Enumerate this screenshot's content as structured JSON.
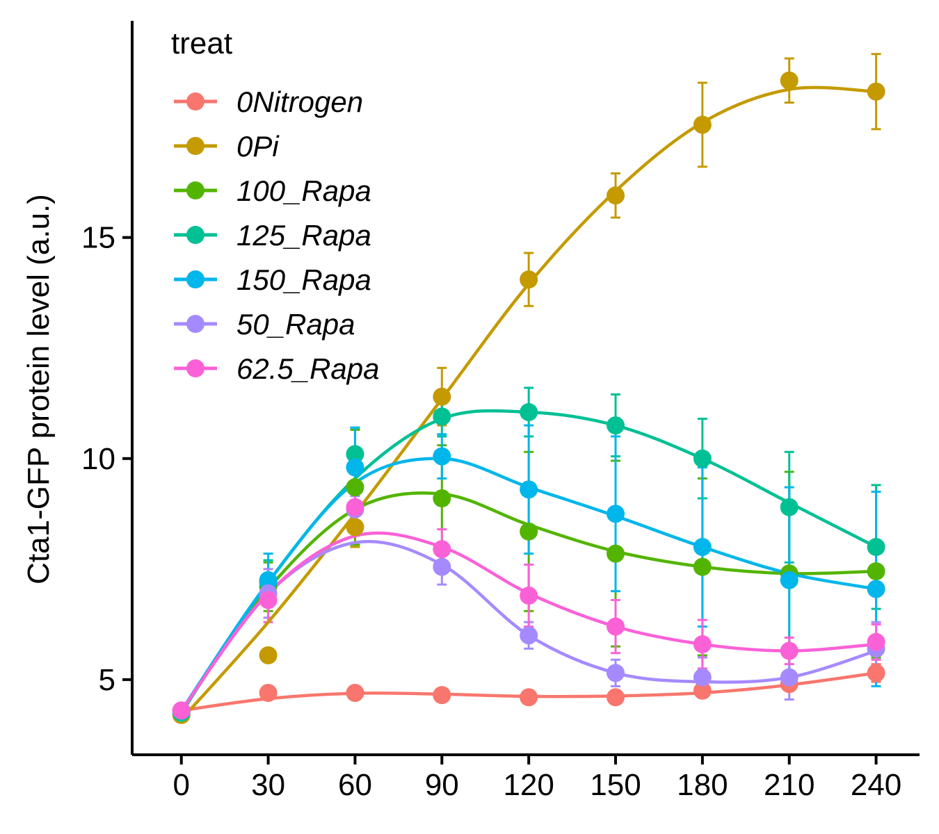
{
  "chart_data": {
    "type": "line",
    "title": "",
    "xlabel": "",
    "ylabel": "Cta1-GFP protein level (a.u.)",
    "x": [
      0,
      30,
      60,
      90,
      120,
      150,
      180,
      210,
      240
    ],
    "x_ticks": [
      "0",
      "30",
      "60",
      "90",
      "120",
      "150",
      "180",
      "210",
      "240"
    ],
    "y_ticks": [
      "5",
      "10",
      "15"
    ],
    "xlim": [
      -17,
      255
    ],
    "ylim": [
      3.3,
      19.9
    ],
    "grid": false,
    "legend": {
      "title": "treat",
      "position": "top-left"
    },
    "series": [
      {
        "name": "0Nitrogen",
        "color": "#F8766D",
        "values": [
          4.3,
          4.7,
          4.7,
          4.65,
          4.6,
          4.6,
          4.75,
          4.9,
          5.15
        ],
        "errors": [
          0.1,
          0.1,
          0.1,
          0.1,
          0.1,
          0.1,
          0.1,
          0.1,
          0.2
        ],
        "smooth": [
          4.3,
          4.57,
          4.69,
          4.67,
          4.62,
          4.63,
          4.7,
          4.88,
          5.15
        ]
      },
      {
        "name": "0Pi",
        "color": "#C49A00",
        "values": [
          4.2,
          5.55,
          8.45,
          11.4,
          14.05,
          15.95,
          17.55,
          18.55,
          18.3
        ],
        "errors": [
          0.1,
          0.15,
          0.45,
          0.65,
          0.6,
          0.5,
          0.95,
          0.5,
          0.85
        ],
        "smooth": [
          4.1,
          6.3,
          8.75,
          11.35,
          13.95,
          16.05,
          17.6,
          18.35,
          18.3
        ]
      },
      {
        "name": "100_Rapa",
        "color": "#53B400",
        "values": [
          4.3,
          7.1,
          9.35,
          9.1,
          8.35,
          7.85,
          7.55,
          7.4,
          7.45
        ],
        "errors": [
          0.1,
          0.55,
          1.3,
          1.2,
          1.8,
          2.1,
          2.0,
          2.3,
          1.95
        ],
        "smooth": [
          4.3,
          7.05,
          8.85,
          9.2,
          8.5,
          7.9,
          7.55,
          7.4,
          7.45
        ]
      },
      {
        "name": "125_Rapa",
        "color": "#00C094",
        "values": [
          4.25,
          7.2,
          10.1,
          10.95,
          11.05,
          10.75,
          10.0,
          8.9,
          8.0
        ],
        "errors": [
          0.1,
          0.5,
          0.6,
          0.45,
          0.55,
          0.7,
          0.9,
          1.25,
          1.4
        ],
        "smooth": [
          4.25,
          7.2,
          9.55,
          10.9,
          11.05,
          10.75,
          10.0,
          9.0,
          8.0
        ]
      },
      {
        "name": "150_Rapa",
        "color": "#00B6EB",
        "values": [
          4.3,
          7.25,
          9.8,
          10.05,
          9.3,
          8.75,
          8.0,
          7.25,
          7.05
        ],
        "errors": [
          0.1,
          0.6,
          0.9,
          0.5,
          1.45,
          1.75,
          1.8,
          2.1,
          2.2
        ],
        "smooth": [
          4.3,
          7.2,
          9.45,
          10.0,
          9.35,
          8.7,
          8.0,
          7.4,
          7.05
        ]
      },
      {
        "name": "50_Rapa",
        "color": "#A58AFF",
        "values": [
          4.3,
          6.95,
          8.85,
          7.55,
          6.0,
          5.15,
          5.05,
          5.05,
          5.7
        ],
        "errors": [
          0.1,
          0.55,
          0.3,
          0.4,
          0.3,
          0.3,
          0.45,
          0.5,
          0.6
        ],
        "smooth": [
          4.3,
          6.95,
          8.1,
          7.6,
          6.0,
          5.15,
          4.95,
          5.05,
          5.65
        ]
      },
      {
        "name": "62.5_Rapa",
        "color": "#FB61D7",
        "values": [
          4.3,
          6.8,
          8.9,
          7.95,
          6.9,
          6.2,
          5.8,
          5.65,
          5.85
        ],
        "errors": [
          0.1,
          0.5,
          0.35,
          0.45,
          0.7,
          0.6,
          0.55,
          0.3,
          0.4
        ],
        "smooth": [
          4.3,
          6.95,
          8.25,
          8.0,
          6.95,
          6.2,
          5.8,
          5.65,
          5.8
        ]
      }
    ]
  }
}
